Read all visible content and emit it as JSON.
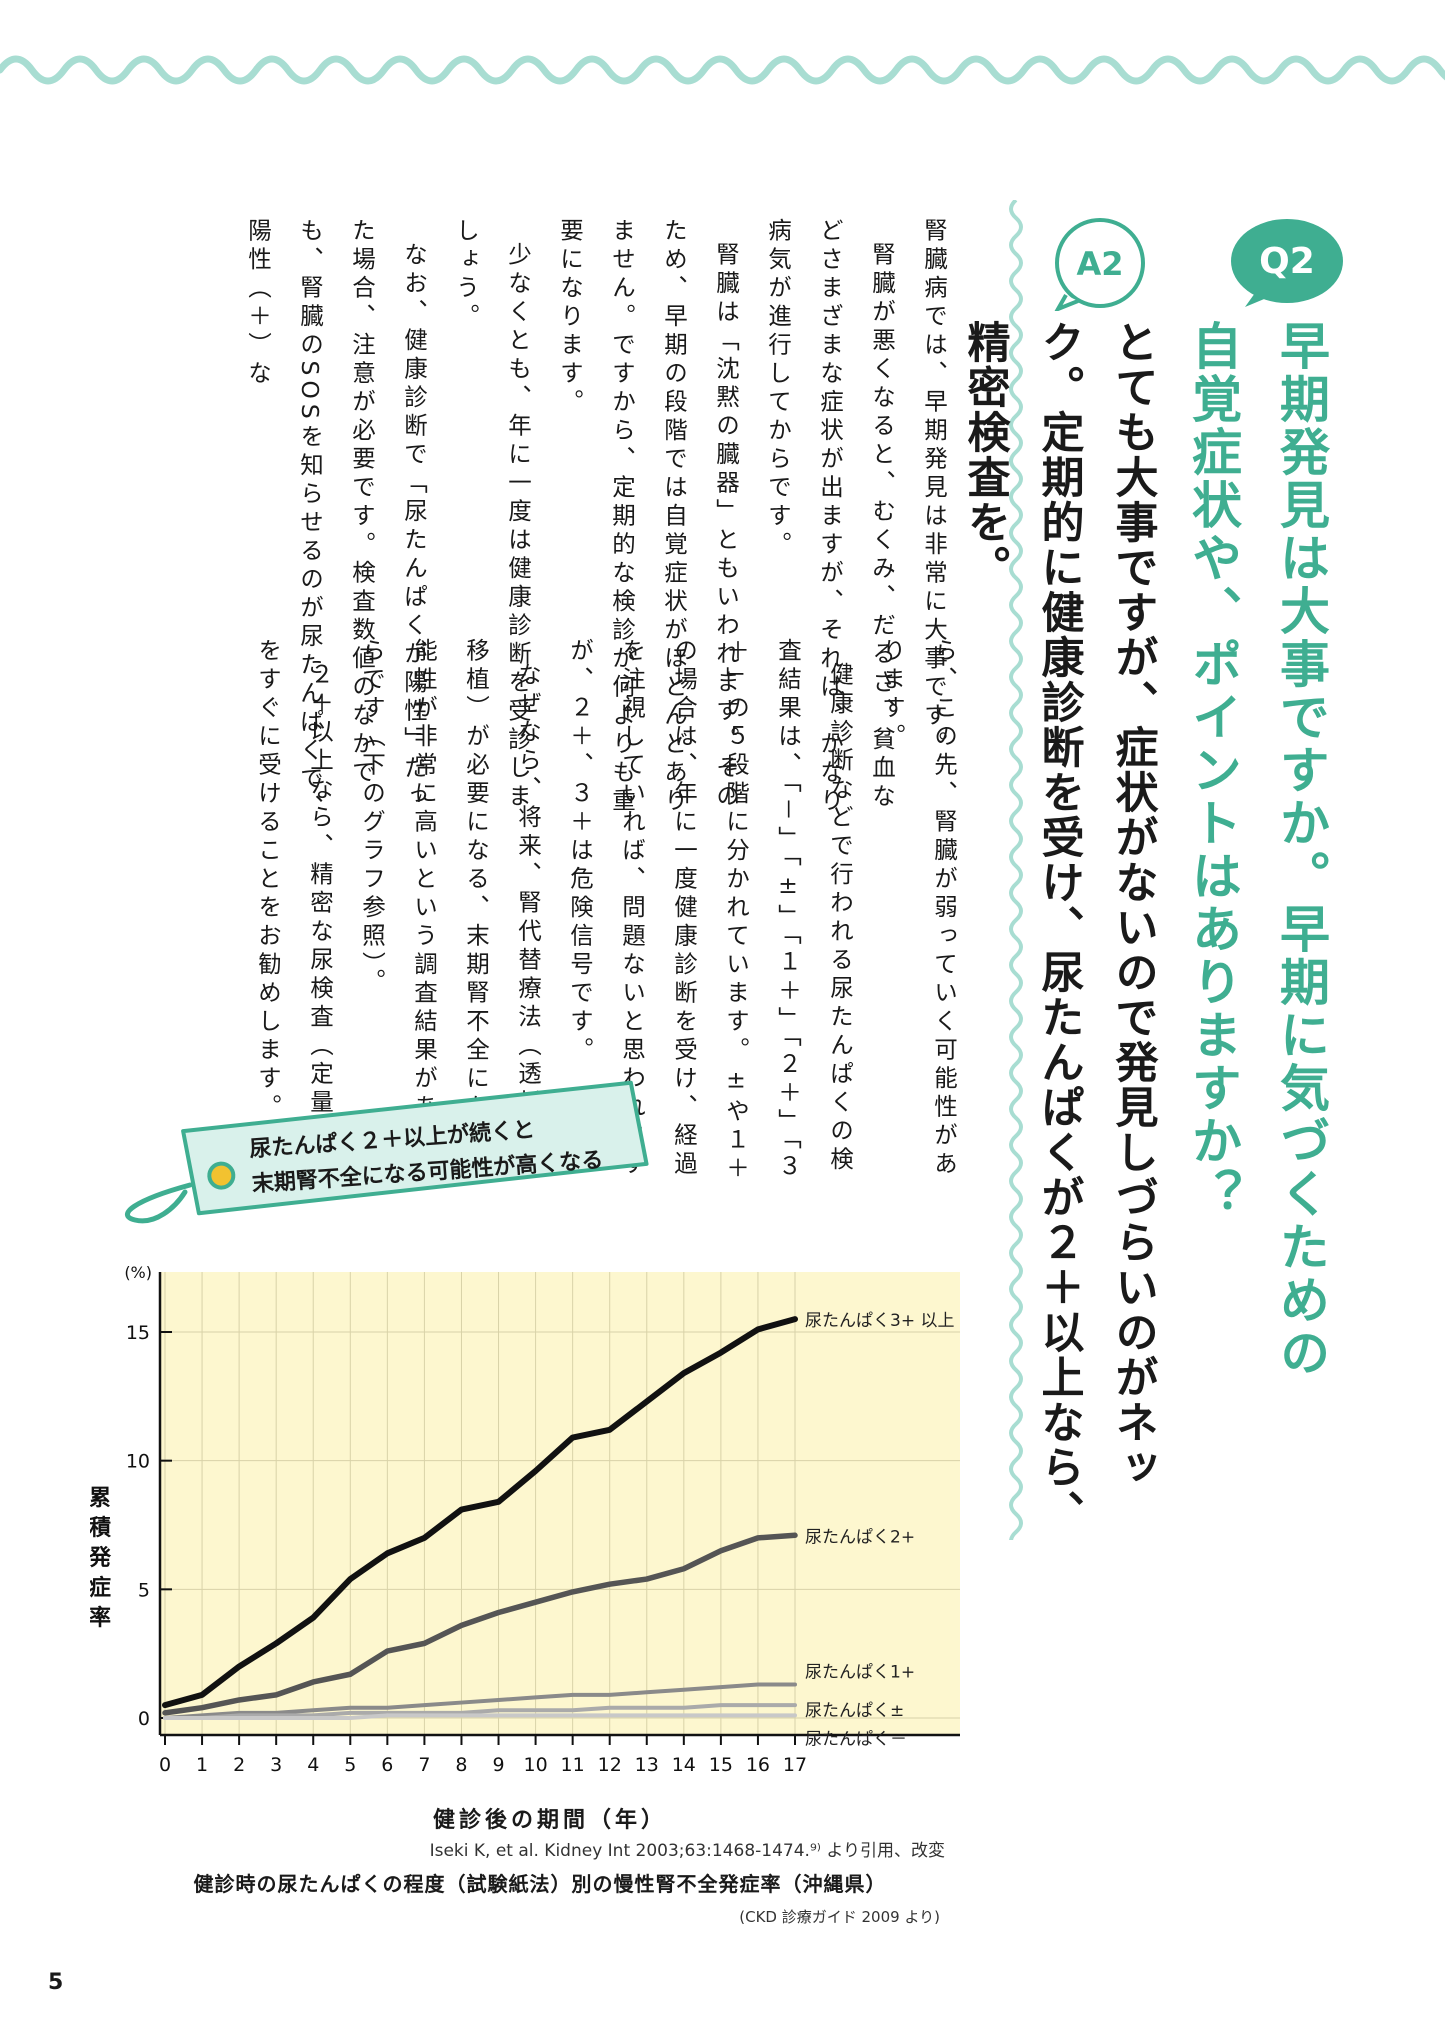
{
  "header": {
    "q_badge": "Q2",
    "a_badge": "A2"
  },
  "question": {
    "text": "早期発見は大事ですか。早期に気づくための自覚症状や、ポイントはありますか？"
  },
  "answer": {
    "text": "とても大事ですが、症状がないので発見しづらいのがネック。定期的に健康診断を受け、尿たんぱくが２＋以上なら、精密検査を。"
  },
  "body": {
    "block_a": [
      "腎臓病では、早期発見は非常に大事です。",
      "腎臓が悪くなると、むくみ、だるさ、貧血などさまざまな症状が出ますが、それは、かなり病気が進行してからです。",
      "腎臓は「沈黙の臓器」ともいわれます。そのため、早期の段階では自覚症状がほとんどありません。ですから、定期的な検診が何よりも重要になります。",
      "少なくとも、年に一度は健康診断を受診しましょう。",
      "なお、健康診断で「尿たんぱくが陽性」だった場合、注意が必要です。検査数値のなかでも、腎臓のSOSを知らせるのが尿たんぱくで、陽性（＋）な"
    ],
    "block_b": [
      "ら、この先、腎臓が弱っていく可能性があります。",
      "健康診断などで行われる尿たんぱくの検査結果は、「－」「±」「１＋」「２＋」「３＋」の５段階に分かれています。±や１＋の場合は、年に一度健康診断を受け、経過を注視していれば、問題ないと思われますが、２＋、３＋は危険信号です。",
      "なぜなら、将来、腎代替療法（透析や腎移植）が必要になる、末期腎不全になる可能性が非常に高いという調査結果があるからです（下のグラフ参照）。",
      "２＋以上なら、精密な尿検査（定量検査）をすぐに受けることをお勧めします。"
    ]
  },
  "tag": {
    "line1": "尿たんぱく２＋以上が続くと",
    "line2": "末期腎不全になる可能性が高くなる"
  },
  "chart_data": {
    "type": "line",
    "x": [
      0,
      1,
      2,
      3,
      4,
      5,
      6,
      7,
      8,
      9,
      10,
      11,
      12,
      13,
      14,
      15,
      16,
      17
    ],
    "xlabel": "健診後の期間（年）",
    "ylabel": "累積発症率",
    "yunit": "(%)",
    "ylim": [
      0,
      18
    ],
    "yticks": [
      0,
      5,
      10,
      15
    ],
    "grid": true,
    "background": "#fdf7cf",
    "series": [
      {
        "name": "尿たんぱく3+ 以上",
        "color": "#111111",
        "values": [
          0.5,
          0.9,
          2.0,
          2.9,
          3.9,
          5.4,
          6.4,
          7.0,
          8.1,
          8.4,
          9.6,
          10.9,
          11.2,
          12.3,
          13.4,
          14.2,
          15.1,
          15.5
        ]
      },
      {
        "name": "尿たんぱく2+",
        "color": "#555555",
        "values": [
          0.2,
          0.4,
          0.7,
          0.9,
          1.4,
          1.7,
          2.6,
          2.9,
          3.6,
          4.1,
          4.5,
          4.9,
          5.2,
          5.4,
          5.8,
          6.5,
          7.0,
          7.1
        ]
      },
      {
        "name": "尿たんぱく1+",
        "color": "#8a8a8a",
        "values": [
          0.0,
          0.1,
          0.2,
          0.2,
          0.3,
          0.4,
          0.4,
          0.5,
          0.6,
          0.7,
          0.8,
          0.9,
          0.9,
          1.0,
          1.1,
          1.2,
          1.3,
          1.3
        ]
      },
      {
        "name": "尿たんぱく±",
        "color": "#aaaaaa",
        "values": [
          0.0,
          0.0,
          0.1,
          0.1,
          0.1,
          0.2,
          0.2,
          0.2,
          0.2,
          0.3,
          0.3,
          0.3,
          0.4,
          0.4,
          0.4,
          0.5,
          0.5,
          0.5
        ]
      },
      {
        "name": "尿たんぱく－",
        "color": "#c8c8c8",
        "values": [
          0.0,
          0.0,
          0.0,
          0.0,
          0.0,
          0.0,
          0.1,
          0.1,
          0.1,
          0.1,
          0.1,
          0.1,
          0.1,
          0.1,
          0.1,
          0.1,
          0.1,
          0.1
        ]
      }
    ],
    "source": "Iseki K, et al. Kidney Int 2003;63:1468-1474.⁹⁾ より引用、改変",
    "title": "健診時の尿たんぱくの程度（試験紙法）別の慢性腎不全発症率（沖縄県）",
    "reference": "(CKD 診療ガイド 2009 より)"
  },
  "colors": {
    "accent": "#3fae91",
    "wave": "#a8ddd2",
    "tag_fill": "#d9f1eb",
    "tag_stroke": "#3fae91",
    "dot": "#f2c230"
  },
  "page": {
    "number": "5"
  }
}
